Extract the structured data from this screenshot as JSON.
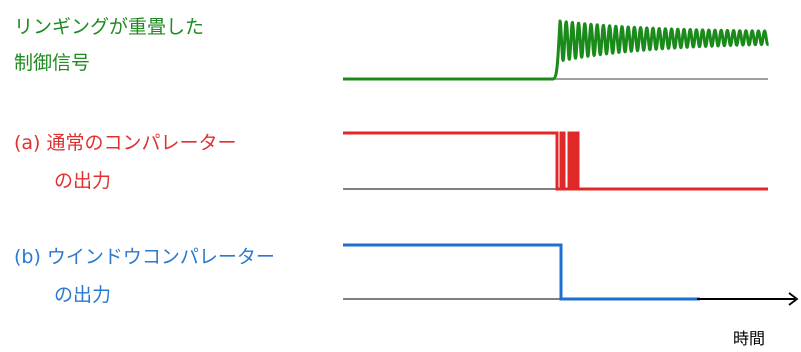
{
  "labels": {
    "ringing": {
      "line1": "リンギングが重畳した",
      "line2": "制御信号"
    },
    "comparator_a": {
      "line1": "(a) 通常のコンパレーター",
      "line2": "の出力"
    },
    "comparator_b": {
      "line1": "(b) ウインドウコンパレーター",
      "line2": "の出力"
    }
  },
  "axis": {
    "time_label": "時間"
  },
  "colors": {
    "ringing": "#1a8a1a",
    "comparator_a": "#e02828",
    "comparator_b": "#1e6fd0",
    "baseline": "#808080",
    "axis": "#000000"
  }
}
